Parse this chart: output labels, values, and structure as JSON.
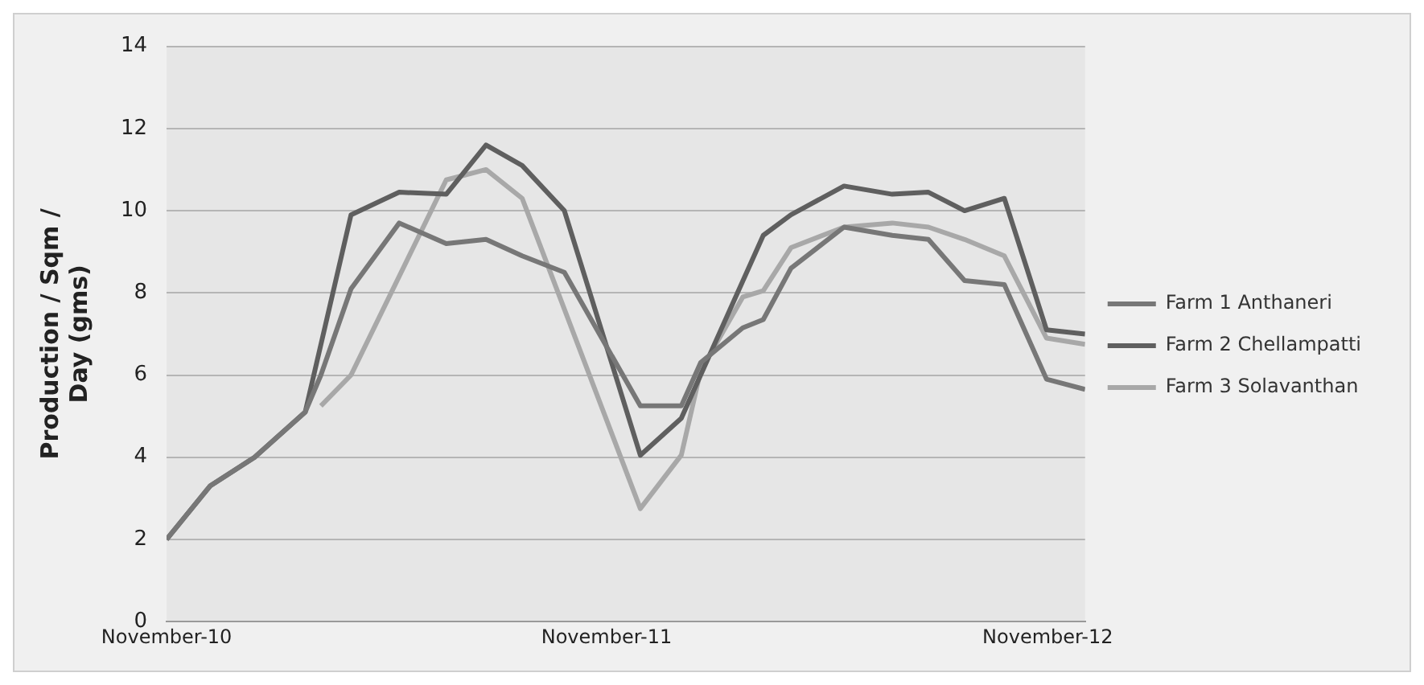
{
  "chart_data": {
    "type": "line",
    "ylabel": "Production / Sqm / Day (gms)",
    "xlim": [
      "2010-11-01",
      "2012-12-02"
    ],
    "xticks": [
      {
        "value": "2010-11-01",
        "label": "November-10"
      },
      {
        "value": "2011-11-01",
        "label": "November-11"
      },
      {
        "value": "2012-11-01",
        "label": "November-12"
      }
    ],
    "ylim": [
      0,
      14
    ],
    "yticks": [
      0,
      2,
      4,
      6,
      8,
      10,
      12,
      14
    ],
    "grid": "y",
    "legend": "right",
    "marker": "none",
    "line_style": "solid",
    "series": [
      {
        "name": "Farm 1 Anthaneri",
        "color": "#777777",
        "x": [
          "2010-11-01",
          "2010-12-07",
          "2011-01-13",
          "2011-02-24",
          "2011-03-09",
          "2011-04-03",
          "2011-05-13",
          "2011-06-21",
          "2011-07-24",
          "2011-08-23",
          "2011-09-27",
          "2011-11-29",
          "2012-01-02",
          "2012-01-18",
          "2012-02-22",
          "2012-03-10",
          "2012-04-02",
          "2012-05-16",
          "2012-06-25",
          "2012-07-25",
          "2012-08-24",
          "2012-09-26",
          "2012-10-31",
          "2012-12-02"
        ],
        "values": [
          2.0,
          3.3,
          4.0,
          5.1,
          6.0,
          8.1,
          9.7,
          9.2,
          9.3,
          8.9,
          8.5,
          5.25,
          5.25,
          6.3,
          7.15,
          7.35,
          8.6,
          9.6,
          9.4,
          9.3,
          8.3,
          8.2,
          5.9,
          5.65
        ]
      },
      {
        "name": "Farm 2 Chellampatti",
        "color": "#5f5f5f",
        "x": [
          "2010-11-01",
          "2010-12-07",
          "2011-01-13",
          "2011-02-24",
          "2011-04-03",
          "2011-05-13",
          "2011-06-21",
          "2011-07-24",
          "2011-08-23",
          "2011-09-27",
          "2011-11-29",
          "2012-01-02",
          "2012-03-10",
          "2012-04-02",
          "2012-05-16",
          "2012-06-25",
          "2012-07-25",
          "2012-08-24",
          "2012-09-26",
          "2012-10-31",
          "2012-12-02"
        ],
        "values": [
          2.0,
          3.3,
          4.0,
          5.1,
          9.9,
          10.45,
          10.4,
          11.6,
          11.1,
          10.0,
          4.05,
          4.95,
          9.4,
          9.9,
          10.6,
          10.4,
          10.45,
          10.0,
          10.3,
          7.1,
          7.0
        ]
      },
      {
        "name": "Farm 3 Solavanthan",
        "color": "#a8a8a8",
        "x": [
          "2011-03-09",
          "2011-04-03",
          "2011-06-21",
          "2011-07-24",
          "2011-08-23",
          "2011-11-29",
          "2012-01-02",
          "2012-01-18",
          "2012-02-22",
          "2012-03-10",
          "2012-04-02",
          "2012-05-16",
          "2012-06-25",
          "2012-07-25",
          "2012-08-24",
          "2012-09-26",
          "2012-10-31",
          "2012-12-02"
        ],
        "values": [
          5.25,
          6.0,
          10.75,
          11.0,
          10.3,
          2.75,
          4.05,
          6.1,
          7.9,
          8.05,
          9.1,
          9.6,
          9.7,
          9.6,
          9.3,
          8.9,
          6.9,
          6.75
        ]
      }
    ]
  }
}
